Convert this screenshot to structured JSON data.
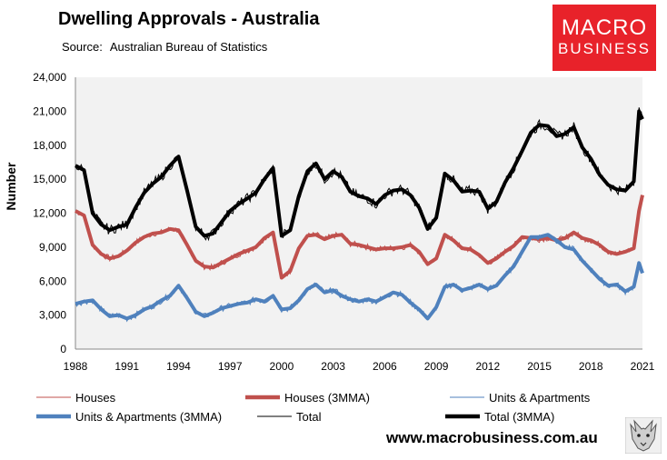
{
  "header": {
    "title": "Dwelling Approvals - Australia",
    "source_label": "Source:",
    "source_value": "Australian Bureau of Statistics"
  },
  "logo": {
    "line1": "MACRO",
    "line2": "BUSINESS"
  },
  "footer": {
    "website": "www.macrobusiness.com.au"
  },
  "colors": {
    "houses": "#c0504d",
    "units": "#4f81bd",
    "total": "#000000",
    "plot_bg": "#f2f2f2",
    "brand": "#e8222a"
  },
  "chart_data": {
    "type": "line",
    "title": "Dwelling Approvals - Australia",
    "xlabel": "",
    "ylabel": "Number",
    "xlim": [
      1988,
      2021
    ],
    "ylim": [
      0,
      24000
    ],
    "grid": false,
    "legend_position": "bottom",
    "x_ticks": [
      "1988",
      "1991",
      "1994",
      "1997",
      "2000",
      "2003",
      "2006",
      "2009",
      "2012",
      "2015",
      "2018",
      "2021"
    ],
    "y_ticks": [
      "0",
      "3,000",
      "6,000",
      "9,000",
      "12,000",
      "15,000",
      "18,000",
      "21,000",
      "24,000"
    ],
    "series": [
      {
        "name": "Houses (3MMA)",
        "style": "thick",
        "x": [
          1988.0,
          1988.5,
          1989.0,
          1989.5,
          1990.0,
          1990.5,
          1991.0,
          1991.5,
          1992.0,
          1992.5,
          1993.0,
          1993.5,
          1994.0,
          1994.5,
          1995.0,
          1995.5,
          1996.0,
          1996.5,
          1997.0,
          1997.5,
          1998.0,
          1998.5,
          1999.0,
          1999.5,
          2000.0,
          2000.5,
          2001.0,
          2001.5,
          2002.0,
          2002.5,
          2003.0,
          2003.5,
          2004.0,
          2004.5,
          2005.0,
          2005.5,
          2006.0,
          2006.5,
          2007.0,
          2007.5,
          2008.0,
          2008.5,
          2009.0,
          2009.5,
          2010.0,
          2010.5,
          2011.0,
          2011.5,
          2012.0,
          2012.5,
          2013.0,
          2013.5,
          2014.0,
          2014.5,
          2015.0,
          2015.5,
          2016.0,
          2016.5,
          2017.0,
          2017.5,
          2018.0,
          2018.5,
          2019.0,
          2019.5,
          2020.0,
          2020.5,
          2020.8,
          2021.0
        ],
        "values": [
          12200,
          11800,
          9200,
          8400,
          8000,
          8200,
          8700,
          9400,
          9900,
          10200,
          10300,
          10600,
          10500,
          9200,
          7800,
          7300,
          7200,
          7600,
          8000,
          8400,
          8700,
          9000,
          9800,
          10300,
          6300,
          6900,
          8900,
          10000,
          10100,
          9700,
          10000,
          10100,
          9300,
          9200,
          9000,
          8800,
          8900,
          8900,
          9000,
          9200,
          8600,
          7500,
          8000,
          10100,
          9600,
          8900,
          8800,
          8300,
          7600,
          8000,
          8600,
          9100,
          9900,
          9800,
          9700,
          9800,
          9600,
          9800,
          10300,
          9800,
          9600,
          9200,
          8600,
          8400,
          8600,
          8900,
          12200,
          13600
        ]
      },
      {
        "name": "Units & Apartments (3MMA)",
        "style": "thick",
        "x": [
          1988.0,
          1988.5,
          1989.0,
          1989.5,
          1990.0,
          1990.5,
          1991.0,
          1991.5,
          1992.0,
          1992.5,
          1993.0,
          1993.5,
          1994.0,
          1994.5,
          1995.0,
          1995.5,
          1996.0,
          1996.5,
          1997.0,
          1997.5,
          1998.0,
          1998.5,
          1999.0,
          1999.5,
          2000.0,
          2000.5,
          2001.0,
          2001.5,
          2002.0,
          2002.5,
          2003.0,
          2003.5,
          2004.0,
          2004.5,
          2005.0,
          2005.5,
          2006.0,
          2006.5,
          2007.0,
          2007.5,
          2008.0,
          2008.5,
          2009.0,
          2009.5,
          2010.0,
          2010.5,
          2011.0,
          2011.5,
          2012.0,
          2012.5,
          2013.0,
          2013.5,
          2014.0,
          2014.5,
          2015.0,
          2015.5,
          2016.0,
          2016.5,
          2017.0,
          2017.5,
          2018.0,
          2018.5,
          2019.0,
          2019.5,
          2020.0,
          2020.5,
          2020.8,
          2021.0
        ],
        "values": [
          4000,
          4200,
          4300,
          3500,
          2900,
          3000,
          2700,
          3000,
          3500,
          3800,
          4300,
          4700,
          5600,
          4500,
          3300,
          2900,
          3200,
          3600,
          3800,
          4000,
          4100,
          4400,
          4200,
          4700,
          3500,
          3600,
          4300,
          5300,
          5700,
          5000,
          5200,
          4700,
          4400,
          4200,
          4400,
          4200,
          4600,
          5000,
          4800,
          4100,
          3500,
          2700,
          3700,
          5500,
          5700,
          5200,
          5400,
          5700,
          5300,
          5600,
          6500,
          7300,
          8600,
          9900,
          9900,
          10100,
          9600,
          9000,
          8800,
          7800,
          7000,
          6200,
          5600,
          5700,
          5100,
          5500,
          7600,
          6700
        ]
      },
      {
        "name": "Total (3MMA)",
        "style": "thick",
        "x": [
          1988.0,
          1988.5,
          1989.0,
          1989.5,
          1990.0,
          1990.5,
          1991.0,
          1991.5,
          1992.0,
          1992.5,
          1993.0,
          1993.5,
          1994.0,
          1994.5,
          1995.0,
          1995.5,
          1996.0,
          1996.5,
          1997.0,
          1997.5,
          1998.0,
          1998.5,
          1999.0,
          1999.5,
          2000.0,
          2000.5,
          2001.0,
          2001.5,
          2002.0,
          2002.5,
          2003.0,
          2003.5,
          2004.0,
          2004.5,
          2005.0,
          2005.5,
          2006.0,
          2006.5,
          2007.0,
          2007.5,
          2008.0,
          2008.5,
          2009.0,
          2009.5,
          2010.0,
          2010.5,
          2011.0,
          2011.5,
          2012.0,
          2012.5,
          2013.0,
          2013.5,
          2014.0,
          2014.5,
          2015.0,
          2015.5,
          2016.0,
          2016.5,
          2017.0,
          2017.5,
          2018.0,
          2018.5,
          2019.0,
          2019.5,
          2020.0,
          2020.5,
          2020.8,
          2021.0
        ],
        "values": [
          16200,
          15800,
          12000,
          11000,
          10500,
          10800,
          11000,
          12500,
          13800,
          14600,
          15200,
          16200,
          17000,
          14000,
          10800,
          10000,
          10200,
          11200,
          12200,
          12800,
          13300,
          13800,
          15000,
          16000,
          10000,
          10500,
          13500,
          15700,
          16400,
          15000,
          15700,
          15200,
          13900,
          13500,
          13300,
          12800,
          13600,
          14000,
          14100,
          13600,
          12500,
          10600,
          11600,
          15500,
          14900,
          13900,
          14000,
          13900,
          12400,
          13000,
          14700,
          16000,
          17500,
          19100,
          19800,
          19700,
          18800,
          19000,
          19600,
          17800,
          16800,
          15400,
          14500,
          14100,
          14000,
          14800,
          21000,
          20300
        ]
      }
    ]
  },
  "legend": [
    {
      "label": "Houses",
      "key": "houses",
      "thick": false
    },
    {
      "label": "Houses (3MMA)",
      "key": "houses",
      "thick": true
    },
    {
      "label": "Units & Apartments",
      "key": "units",
      "thick": false
    },
    {
      "label": "Units & Apartments (3MMA)",
      "key": "units",
      "thick": true
    },
    {
      "label": "Total",
      "key": "total",
      "thick": false
    },
    {
      "label": "Total (3MMA)",
      "key": "total",
      "thick": true
    }
  ]
}
